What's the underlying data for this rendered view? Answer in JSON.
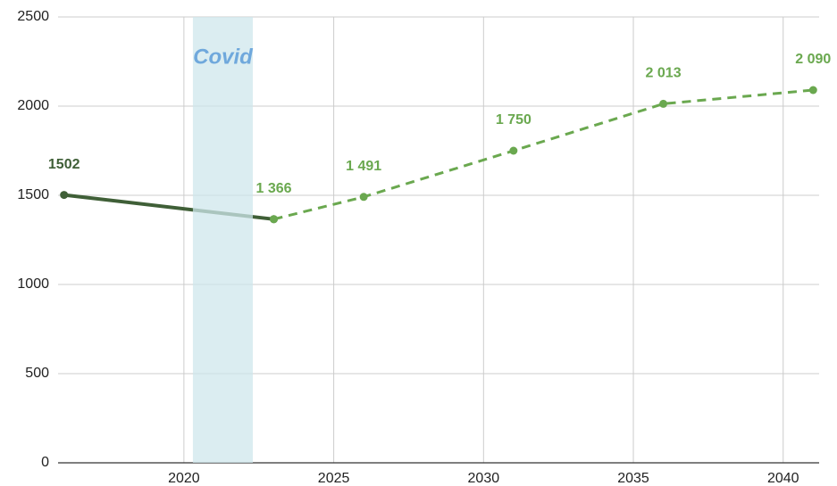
{
  "chart_data": {
    "type": "line",
    "xlim": [
      2015.8,
      2041.2
    ],
    "xticks": [
      2020,
      2025,
      2030,
      2035,
      2040
    ],
    "ylim": [
      0,
      2500
    ],
    "yticks": [
      0,
      500,
      1000,
      1500,
      2000,
      2500
    ],
    "grid": true,
    "series": [
      {
        "color": "#3f5f37",
        "dashed": false,
        "x": [
          2016,
          2023
        ],
        "values": [
          1502,
          1366
        ],
        "value_labels": [
          "1502",
          null
        ]
      },
      {
        "color": "#6aa84f",
        "dashed": true,
        "x": [
          2023,
          2026,
          2031,
          2036,
          2041
        ],
        "values": [
          1366,
          1491,
          1750,
          2013,
          2090
        ],
        "value_labels": [
          "1 366",
          "1 491",
          "1 750",
          "2 013",
          "2 090"
        ]
      }
    ],
    "annotations": [
      {
        "text": "Covid",
        "x_start": 2020.3,
        "x_end": 2022.3,
        "color": "#cfe7ec",
        "text_color": "#6fa8dc"
      }
    ]
  }
}
